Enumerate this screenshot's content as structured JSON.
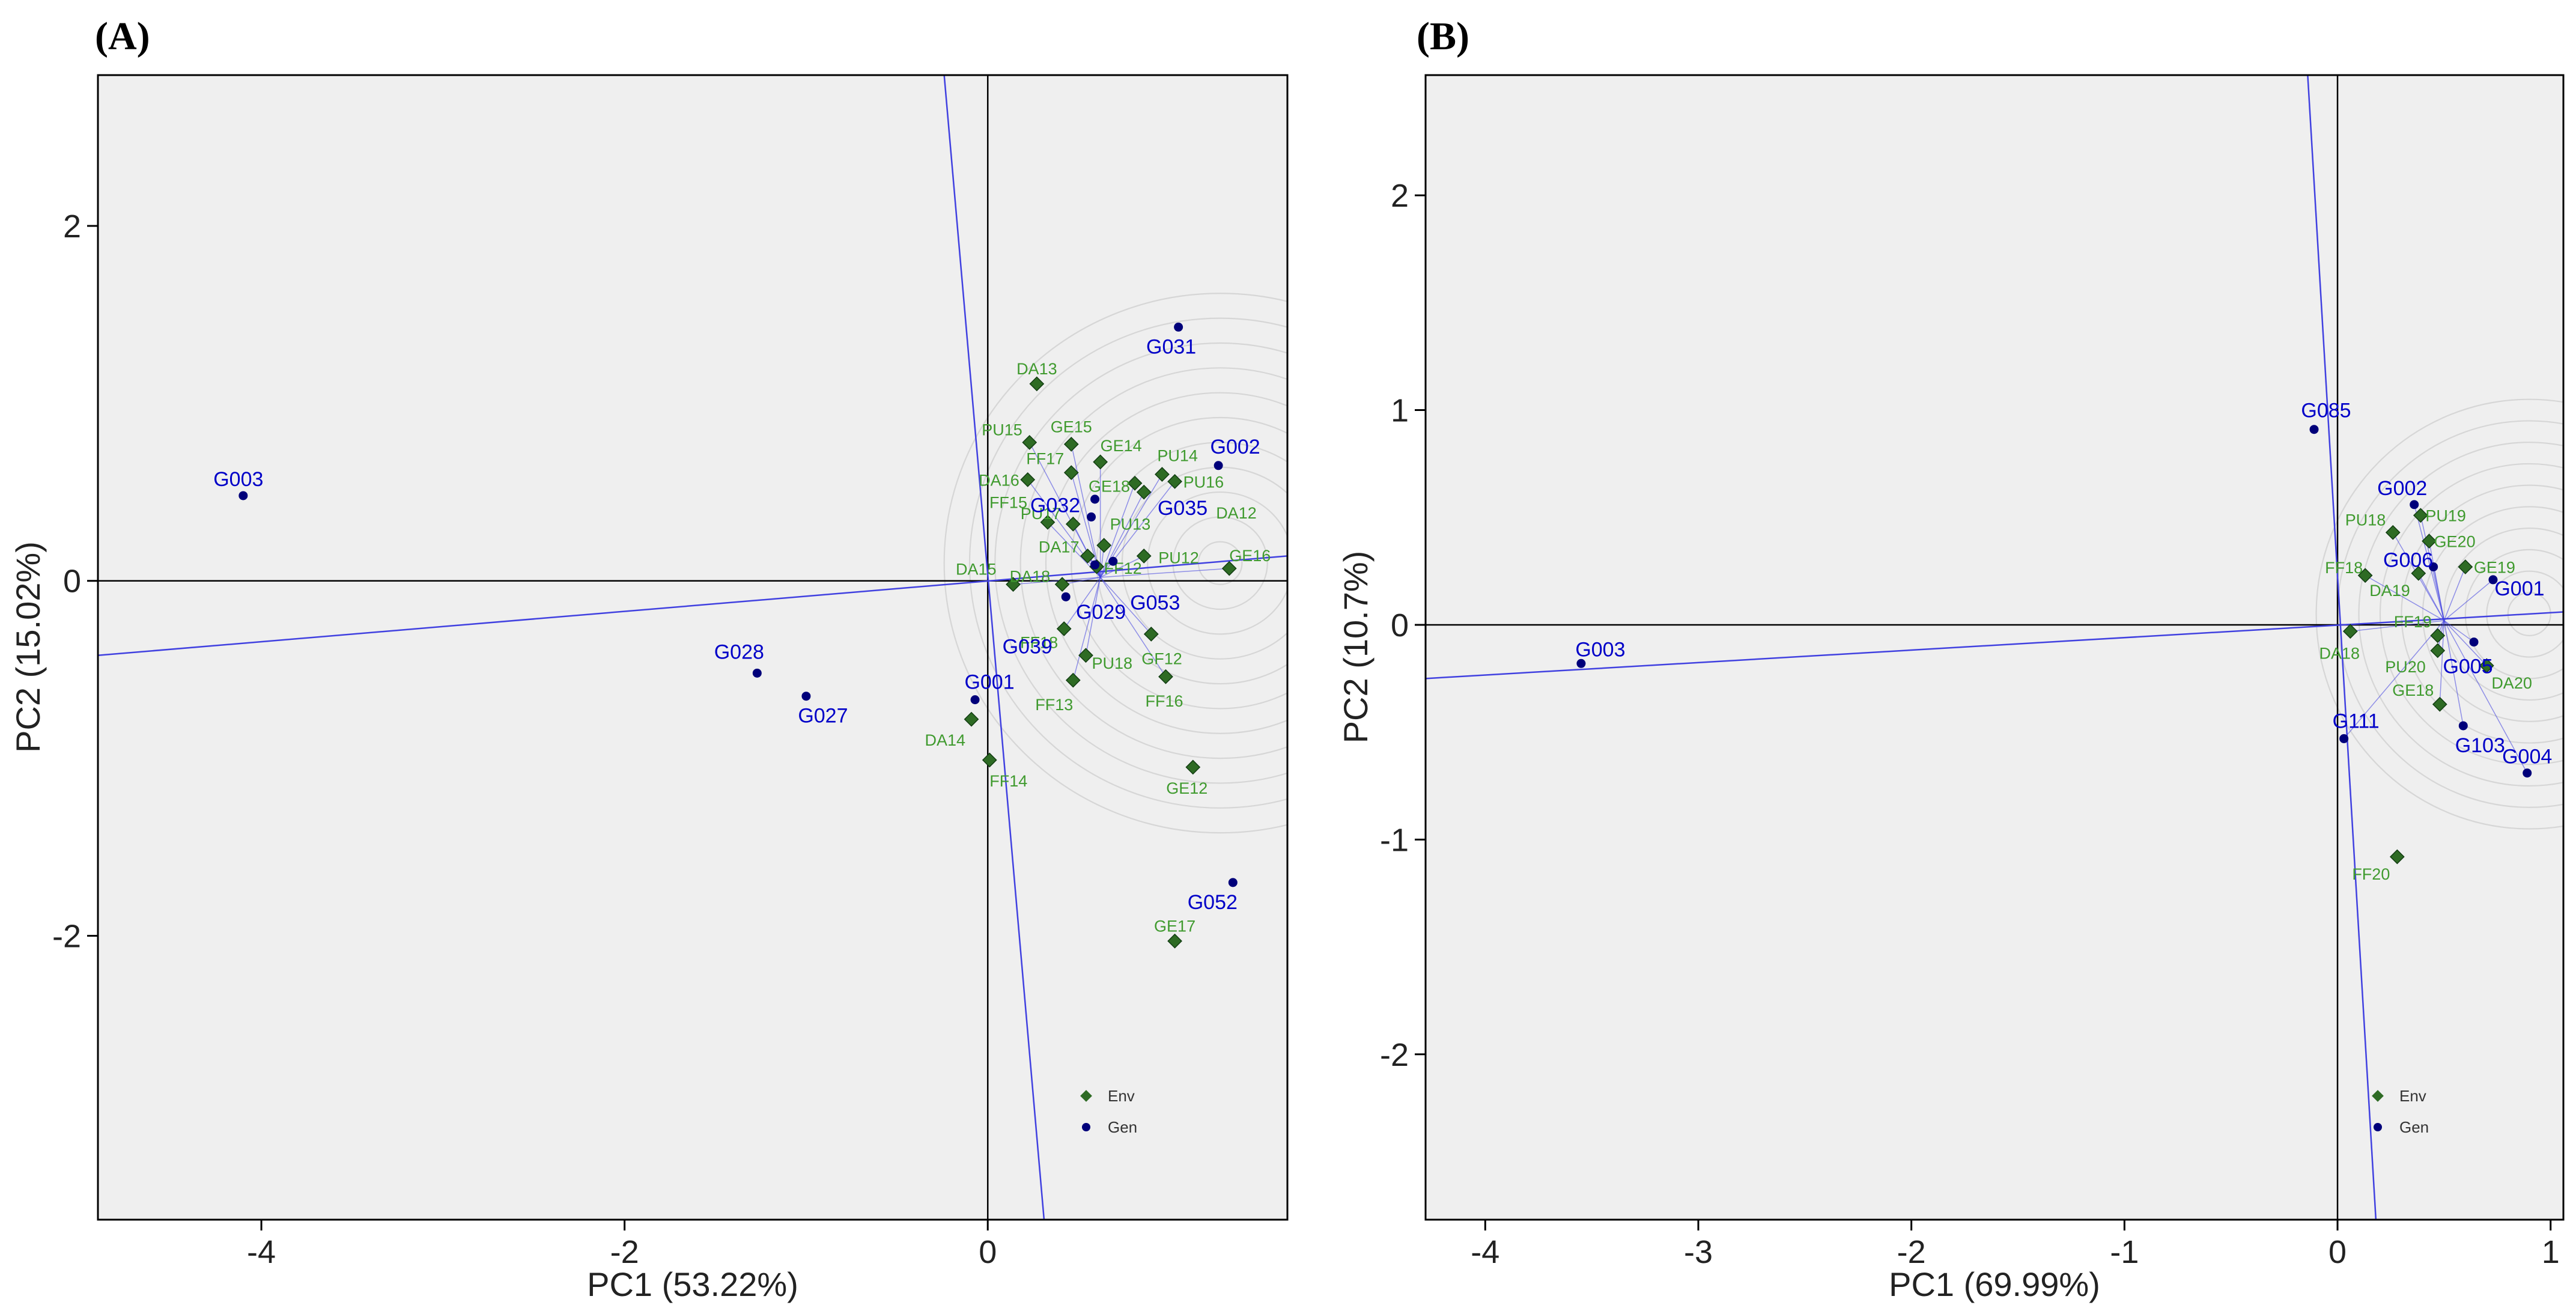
{
  "figure": {
    "colors": {
      "env": "#3f9a2e",
      "env_marker": "#2e6b24",
      "gen": "#0000c8",
      "gen_marker": "#00007a",
      "plot_bg": "#efefef",
      "circle": "#d6d6d6",
      "vector": "#4040e0"
    }
  },
  "chart_data": [
    {
      "type": "scatter",
      "panel_label": "(A)",
      "panel_letter": "A",
      "xlabel": "PC1 (53.22%)",
      "ylabel": "PC2 (15.02%)",
      "xlim": [
        -4.9,
        1.65
      ],
      "ylim": [
        -3.6,
        2.85
      ],
      "xticks": [
        -4,
        -2,
        0
      ],
      "xtick_labels": [
        "-4",
        "-2",
        "0"
      ],
      "yticks": [
        -2,
        0,
        2
      ],
      "ytick_labels": [
        "-2",
        "0",
        "2"
      ],
      "ideal_center": [
        1.28,
        0.1
      ],
      "circle_radii": [
        0.12,
        0.26,
        0.4,
        0.54,
        0.68,
        0.82,
        0.96,
        1.1,
        1.24,
        1.38,
        1.52
      ],
      "blue_lines": [
        {
          "x1": -4.9,
          "y1": -0.42,
          "x2": 1.65,
          "y2": 0.14
        },
        {
          "x1": -0.24,
          "y1": 2.85,
          "x2": 0.31,
          "y2": -3.6
        }
      ],
      "vector_origin": [
        0.62,
        0.02
      ],
      "legend": {
        "entries": [
          {
            "label": "Env",
            "series": "Env"
          },
          {
            "label": "Gen",
            "series": "Gen"
          }
        ],
        "position": "bottom-right"
      },
      "series": [
        {
          "name": "Env",
          "points": [
            {
              "label": "DA13",
              "x": 0.27,
              "y": 1.11
            },
            {
              "label": "PU15",
              "x": 0.23,
              "y": 0.78
            },
            {
              "label": "GE15",
              "x": 0.46,
              "y": 0.77
            },
            {
              "label": "GE14",
              "x": 0.62,
              "y": 0.67
            },
            {
              "label": "FF17",
              "x": 0.46,
              "y": 0.61
            },
            {
              "label": "PU14",
              "x": 0.96,
              "y": 0.6
            },
            {
              "label": "PU16",
              "x": 1.03,
              "y": 0.56
            },
            {
              "label": "DA16",
              "x": 0.22,
              "y": 0.57
            },
            {
              "label": "GE18",
              "x": 0.81,
              "y": 0.55
            },
            {
              "label": "DA12",
              "x": 0.86,
              "y": 0.5
            },
            {
              "label": "FF15",
              "x": 0.33,
              "y": 0.33
            },
            {
              "label": "PU17",
              "x": 0.47,
              "y": 0.32
            },
            {
              "label": "PU13",
              "x": 0.64,
              "y": 0.2
            },
            {
              "label": "DA17",
              "x": 0.55,
              "y": 0.14
            },
            {
              "label": "PU12",
              "x": 0.86,
              "y": 0.14
            },
            {
              "label": "FF12",
              "x": 0.6,
              "y": 0.08
            },
            {
              "label": "GE16",
              "x": 1.33,
              "y": 0.07
            },
            {
              "label": "DA15",
              "x": 0.14,
              "y": -0.02
            },
            {
              "label": "DA18",
              "x": 0.41,
              "y": -0.02
            },
            {
              "label": "FF18",
              "x": 0.42,
              "y": -0.27
            },
            {
              "label": "GF12",
              "x": 0.9,
              "y": -0.3
            },
            {
              "label": "PU18",
              "x": 0.54,
              "y": -0.42
            },
            {
              "label": "FF13",
              "x": 0.47,
              "y": -0.56
            },
            {
              "label": "FF16",
              "x": 0.98,
              "y": -0.54
            },
            {
              "label": "DA14",
              "x": -0.09,
              "y": -0.78
            },
            {
              "label": "FF14",
              "x": 0.01,
              "y": -1.01
            },
            {
              "label": "GE12",
              "x": 1.13,
              "y": -1.05
            },
            {
              "label": "GE17",
              "x": 1.03,
              "y": -2.03
            }
          ]
        },
        {
          "name": "Gen",
          "points": [
            {
              "label": "G003",
              "x": -4.1,
              "y": 0.48
            },
            {
              "label": "G028",
              "x": -1.27,
              "y": -0.52
            },
            {
              "label": "G027",
              "x": -1.0,
              "y": -0.65
            },
            {
              "label": "G001",
              "x": -0.07,
              "y": -0.67
            },
            {
              "label": "G031",
              "x": 1.05,
              "y": 1.43
            },
            {
              "label": "G002",
              "x": 1.27,
              "y": 0.65
            },
            {
              "label": "G032",
              "x": 0.57,
              "y": 0.36
            },
            {
              "label": "G035",
              "x": 0.59,
              "y": 0.46
            },
            {
              "label": "G053",
              "x": 0.69,
              "y": 0.11
            },
            {
              "label": "G029",
              "x": 0.59,
              "y": 0.09
            },
            {
              "label": "G039",
              "x": 0.43,
              "y": -0.09
            },
            {
              "label": "G052",
              "x": 1.35,
              "y": -1.7
            }
          ]
        }
      ]
    },
    {
      "type": "scatter",
      "panel_label": "(B)",
      "panel_letter": "B",
      "xlabel": "PC1 (69.99%)",
      "ylabel": "PC2 (10.7%)",
      "xlim": [
        -4.28,
        1.06
      ],
      "ylim": [
        -2.77,
        2.56
      ],
      "xticks": [
        -4,
        -3,
        -2,
        -1,
        0,
        1
      ],
      "xtick_labels": [
        "-4",
        "-3",
        "-2",
        "-1",
        "0",
        "1"
      ],
      "yticks": [
        -2,
        -1,
        0,
        1,
        2
      ],
      "ytick_labels": [
        "-2",
        "-1",
        "0",
        "1",
        "2"
      ],
      "ideal_center": [
        0.9,
        0.05
      ],
      "circle_radii": [
        0.1,
        0.2,
        0.3,
        0.4,
        0.5,
        0.6,
        0.7,
        0.8,
        0.9,
        1.0
      ],
      "blue_lines": [
        {
          "x1": -4.28,
          "y1": -0.25,
          "x2": 1.06,
          "y2": 0.06
        },
        {
          "x1": -0.14,
          "y1": 2.56,
          "x2": 0.18,
          "y2": -2.77
        }
      ],
      "vector_origin": [
        0.5,
        0.02
      ],
      "legend": {
        "entries": [
          {
            "label": "Env",
            "series": "Env"
          },
          {
            "label": "Gen",
            "series": "Gen"
          }
        ],
        "position": "bottom-right"
      },
      "series": [
        {
          "name": "Env",
          "points": [
            {
              "label": "PU19",
              "x": 0.39,
              "y": 0.51
            },
            {
              "label": "PU18",
              "x": 0.26,
              "y": 0.43
            },
            {
              "label": "GE20",
              "x": 0.43,
              "y": 0.39
            },
            {
              "label": "GE19",
              "x": 0.6,
              "y": 0.27
            },
            {
              "label": "FF18",
              "x": 0.13,
              "y": 0.23
            },
            {
              "label": "DA19",
              "x": 0.38,
              "y": 0.24
            },
            {
              "label": "FF19",
              "x": 0.47,
              "y": -0.05
            },
            {
              "label": "DA18",
              "x": 0.06,
              "y": -0.03
            },
            {
              "label": "PU20",
              "x": 0.47,
              "y": -0.12
            },
            {
              "label": "DA20",
              "x": 0.7,
              "y": -0.19
            },
            {
              "label": "GE18",
              "x": 0.48,
              "y": -0.37
            },
            {
              "label": "FF20",
              "x": 0.28,
              "y": -1.08
            }
          ]
        },
        {
          "name": "Gen",
          "points": [
            {
              "label": "G003",
              "x": -3.55,
              "y": -0.18
            },
            {
              "label": "G085",
              "x": -0.11,
              "y": 0.91
            },
            {
              "label": "G002",
              "x": 0.36,
              "y": 0.56
            },
            {
              "label": "G006",
              "x": 0.45,
              "y": 0.27
            },
            {
              "label": "G001",
              "x": 0.73,
              "y": 0.21
            },
            {
              "label": "G005",
              "x": 0.64,
              "y": -0.08
            },
            {
              "label": "G111",
              "x": 0.03,
              "y": -0.53
            },
            {
              "label": "G103",
              "x": 0.59,
              "y": -0.47
            },
            {
              "label": "G004",
              "x": 0.89,
              "y": -0.69
            }
          ]
        }
      ]
    }
  ]
}
